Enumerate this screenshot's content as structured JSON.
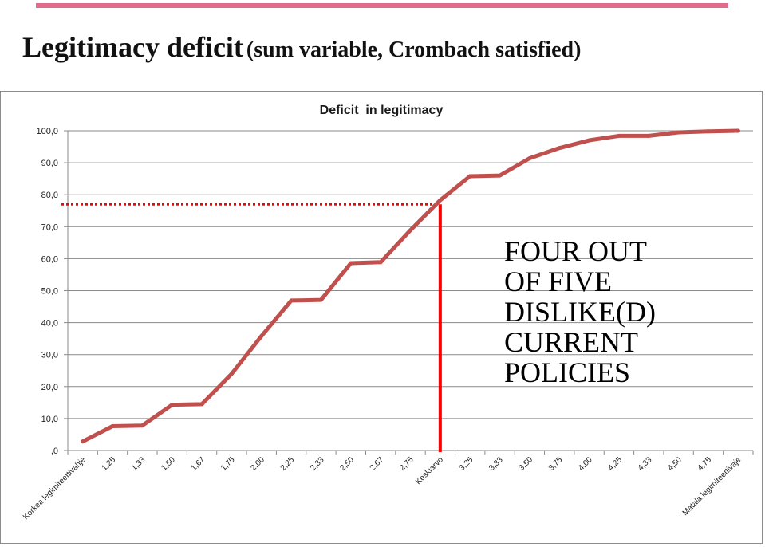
{
  "slide": {
    "title_main": "Legitimacy deficit",
    "title_sub": "(sum variable, Crombach satisfied)",
    "accent_color": "#e06b8b"
  },
  "chart_data": {
    "type": "line",
    "title": "Deficit  in legitimacy",
    "xlabel": "",
    "ylabel": "",
    "categories": [
      "Korkea legimiteettivahje",
      "1,25",
      "1,33",
      "1,50",
      "1,67",
      "1,75",
      "2,00",
      "2,25",
      "2,33",
      "2,50",
      "2,67",
      "2,75",
      "Keskiarvo",
      "3,25",
      "3,33",
      "3,50",
      "3,75",
      "4,00",
      "4,25",
      "4,33",
      "4,50",
      "4,75",
      "Matala legimiteettivaje"
    ],
    "series": [
      {
        "values": [
          2.8,
          7.6,
          7.8,
          14.3,
          14.5,
          24.0,
          35.8,
          46.9,
          47.1,
          58.6,
          58.9,
          68.9,
          78.3,
          85.8,
          86.0,
          91.4,
          94.6,
          97.0,
          98.4,
          98.4,
          99.5,
          99.8,
          100.0
        ],
        "color": "#c0504d"
      }
    ],
    "ylim": [
      0,
      100
    ],
    "yticks": [
      0,
      10,
      20,
      30,
      40,
      50,
      60,
      70,
      80,
      90,
      100
    ],
    "ytick_labels": [
      ",0",
      "10,0",
      "20,0",
      "30,0",
      "40,0",
      "50,0",
      "60,0",
      "70,0",
      "80,0",
      "90,0",
      "100,0"
    ],
    "grid": true,
    "legend": "none",
    "reference": {
      "category": "Keskiarvo",
      "value": 77,
      "line_color": "#ff0000"
    }
  },
  "annotation": {
    "lines": [
      "FOUR OUT",
      "OF FIVE",
      "DISLIKE(D)",
      "CURRENT",
      "POLICIES"
    ]
  }
}
